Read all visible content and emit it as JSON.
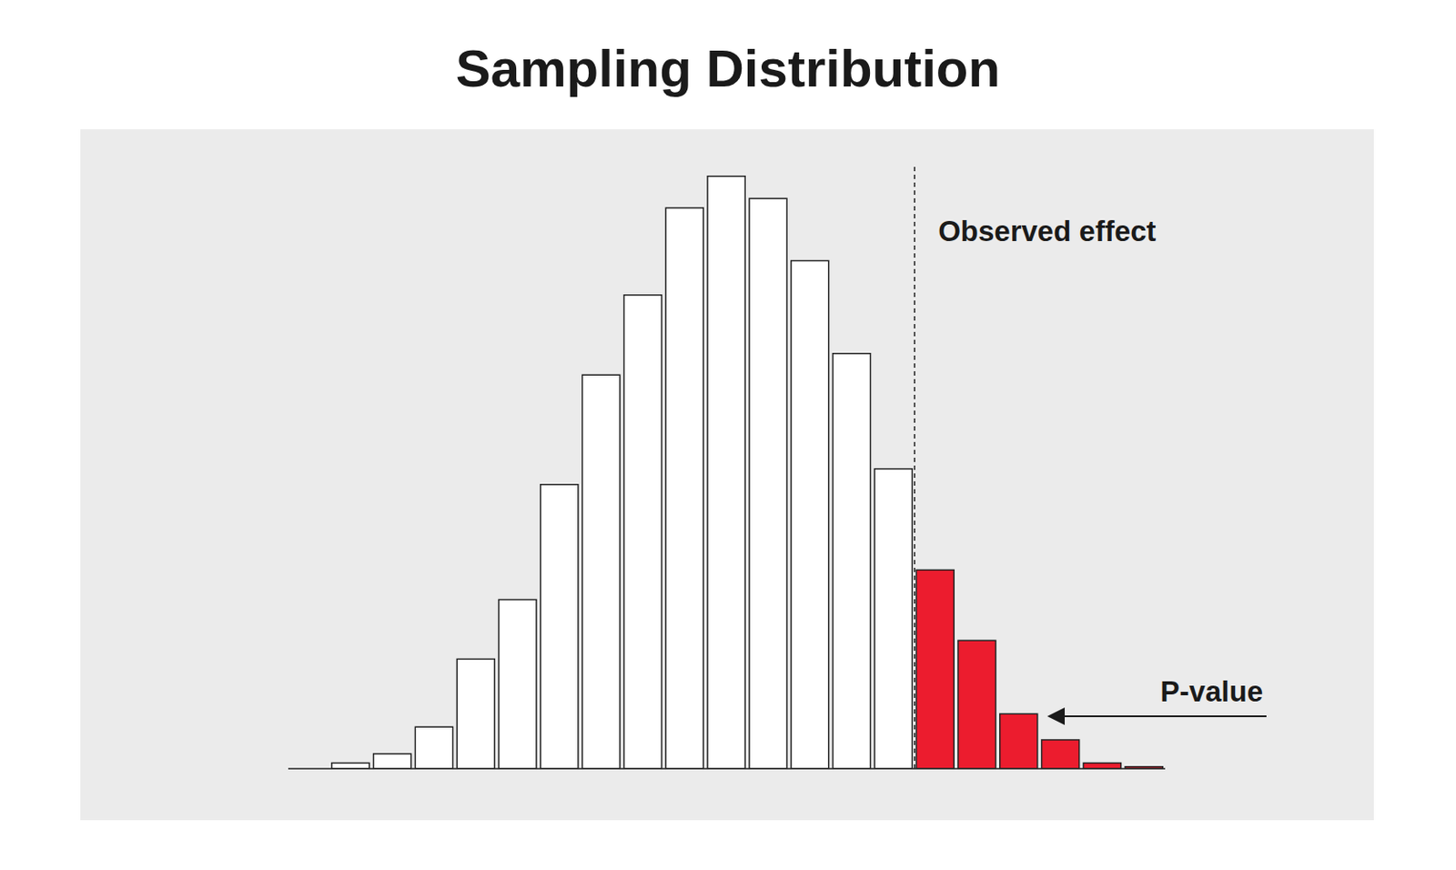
{
  "chart_data": {
    "type": "histogram",
    "title": "Sampling Distribution",
    "bins": [
      0,
      1,
      2,
      3,
      4,
      5,
      6,
      7,
      8,
      9,
      10,
      11,
      12,
      13,
      14,
      15,
      16,
      17,
      18,
      19,
      20
    ],
    "values": [
      6,
      16,
      45,
      118,
      182,
      306,
      424,
      510,
      604,
      638,
      614,
      547,
      447,
      323,
      214,
      138,
      59,
      31,
      6,
      2
    ],
    "colors": [
      "#ffffff",
      "#ffffff",
      "#ffffff",
      "#ffffff",
      "#ffffff",
      "#ffffff",
      "#ffffff",
      "#ffffff",
      "#ffffff",
      "#ffffff",
      "#ffffff",
      "#ffffff",
      "#ffffff",
      "#ffffff",
      "#ec1c2e",
      "#ec1c2e",
      "#ec1c2e",
      "#ec1c2e",
      "#ec1c2e",
      "#ec1c2e"
    ],
    "xlim": [
      -1,
      20
    ],
    "ylim": [
      0,
      650
    ],
    "tick_labels": false,
    "grid": false,
    "annotations": [
      {
        "text": "Observed effect",
        "x": 14,
        "line_style": "dashed"
      },
      {
        "text": "P-value"
      }
    ]
  }
}
